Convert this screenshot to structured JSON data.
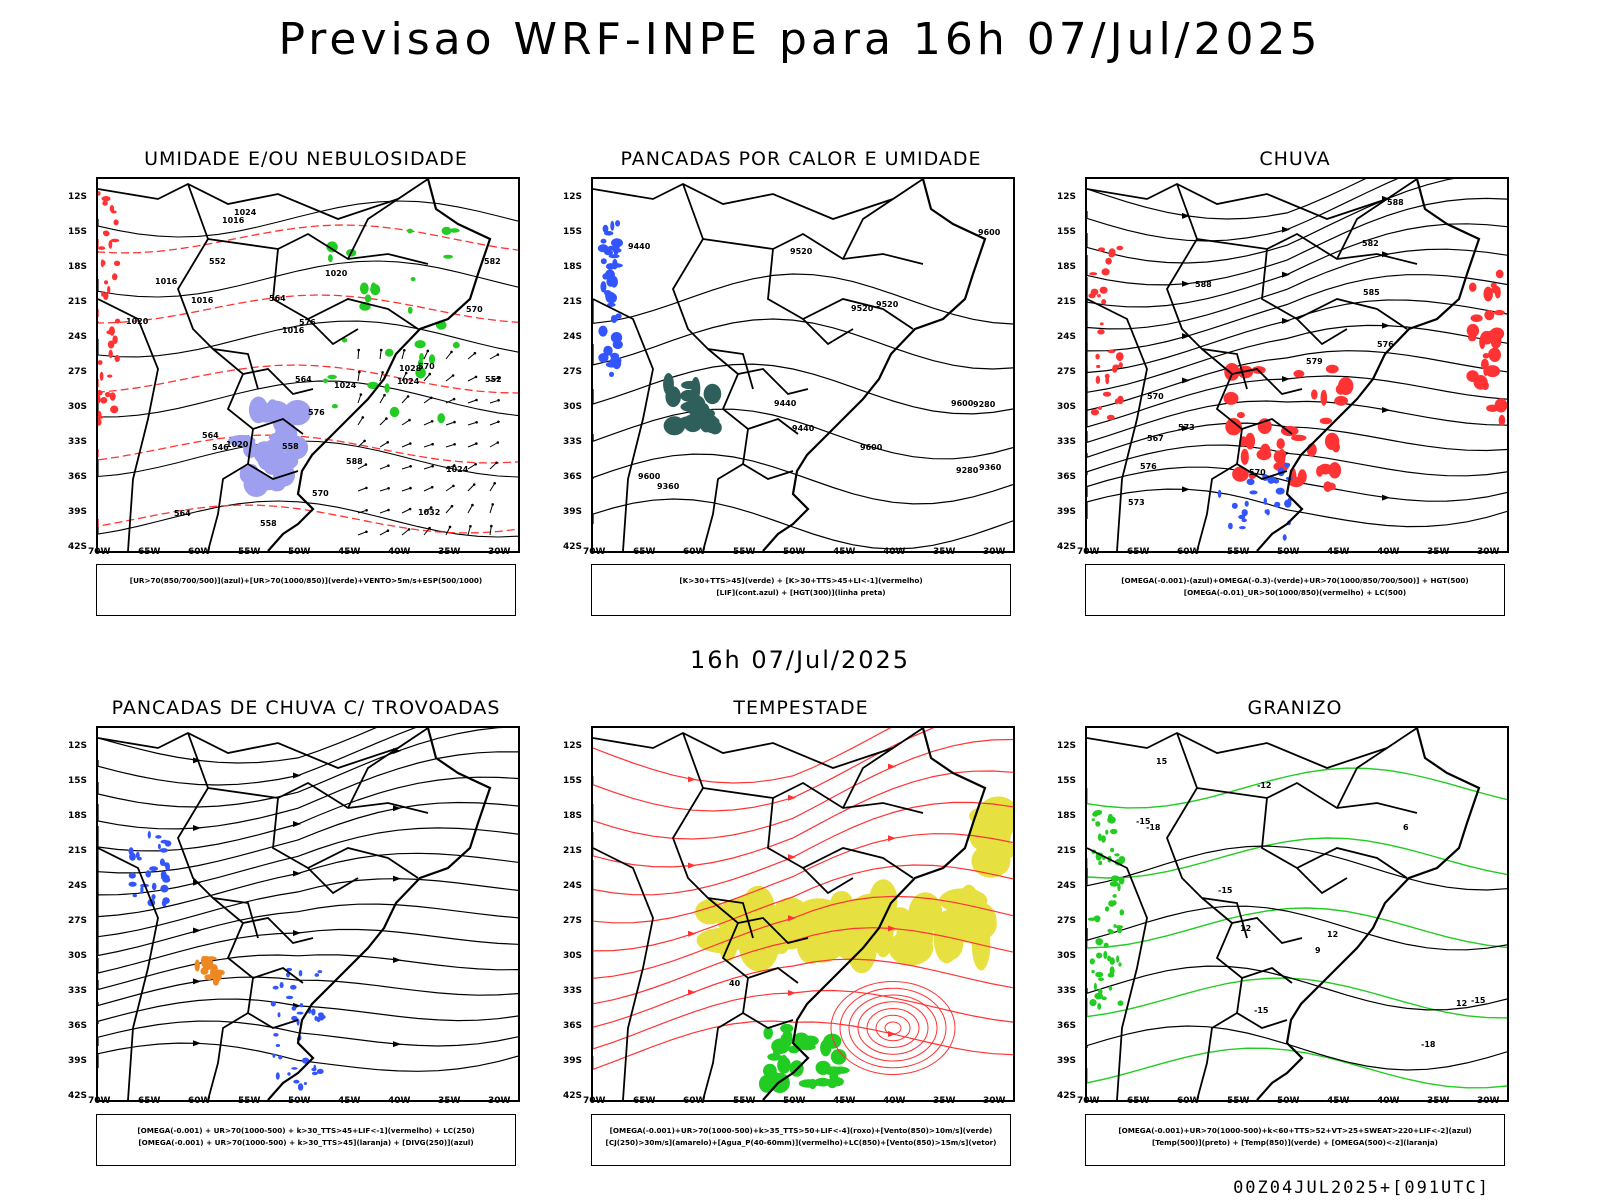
{
  "title": "Previsao WRF-INPE  para 16h 07/Jul/2025",
  "subtitle": "16h 07/Jul/2025",
  "footer": "00Z04JUL2025+[091UTC]",
  "lat_labels": [
    "12S",
    "15S",
    "18S",
    "21S",
    "24S",
    "27S",
    "30S",
    "33S",
    "36S",
    "39S",
    "42S"
  ],
  "lon_labels": [
    "70W",
    "65W",
    "60W",
    "55W",
    "50W",
    "45W",
    "40W",
    "35W",
    "30W"
  ],
  "panels": [
    {
      "title": "UMIDADE E/OU NEBULOSIDADE",
      "legend": [
        "[UR>70(850/700/500)](azul)+[UR>70(1000/850)](verde)+VENTO>5m/s+ESP(500/1000)"
      ],
      "contour_labels": [
        "1016",
        "1016",
        "1016",
        "1016",
        "1020",
        "1020",
        "1020",
        "1024",
        "1024",
        "1024",
        "1024",
        "1028",
        "1032",
        "570",
        "576",
        "570",
        "564",
        "564",
        "564",
        "558",
        "552",
        "546",
        "552",
        "558",
        "570",
        "564",
        "582",
        "588",
        "576"
      ]
    },
    {
      "title": "PANCADAS POR CALOR E UMIDADE",
      "legend": [
        "[K>30+TTS>45](verde) + [K>30+TTS>45+LI<-1](vermelho)",
        "[LIF](cont.azul) + [HGT(300)](linha preta)"
      ],
      "contour_labels": [
        "9520",
        "9600",
        "9600",
        "9600",
        "9600",
        "9520",
        "9440",
        "9440",
        "9360",
        "9280",
        "9520",
        "9440",
        "9360",
        "9280"
      ]
    },
    {
      "title": "CHUVA",
      "legend": [
        "[OMEGA(-0.001)-(azul)+OMEGA(-0.3)-(verde)+UR>70(1000/850/700/500)] + HGT(500)",
        "[OMEGA(-0.01)_UR>50(1000/850)(vermelho) + LC(500)"
      ],
      "contour_labels": [
        "588",
        "588",
        "585",
        "582",
        "579",
        "576",
        "573",
        "570",
        "576",
        "573",
        "570",
        "567"
      ]
    },
    {
      "title": "PANCADAS DE CHUVA C/ TROVOADAS",
      "legend": [
        "[OMEGA(-0.001) + UR>70(1000-500) + k>30_TTS>45+LIF<-1](vermelho) + LC(250)",
        "[OMEGA(-0.001) + UR>70(1000-500) + k>30_TTS>45](laranja) + [DIVG(250)](azul)"
      ],
      "contour_labels": []
    },
    {
      "title": "TEMPESTADE",
      "legend": [
        "[OMEGA(-0.001)+UR>70(1000-500)+k>35_TTS>50+LIF<-4](roxo)+[Vento(850)>10m/s](verde)",
        "[CJ(250)>30m/s](amarelo)+[Agua_P(40-60mm)](vermelho)+LC(850)+[Vento(850)>15m/s](vetor)"
      ],
      "contour_labels": [
        "40"
      ]
    },
    {
      "title": "GRANIZO",
      "legend": [
        "[OMEGA(-0.001)+UR>70(1000-500)+k<60+TTS>52+VT>25+SWEAT>220+LIF<-2](azul)",
        "[Temp(500)](preto) + [Temp(850)](verde) + [OMEGA(500)<-2](laranja)"
      ],
      "contour_labels": [
        "12",
        "12",
        "9",
        "6",
        "-12",
        "-15",
        "-18",
        "-15",
        "-15",
        "-18",
        "-15",
        "15",
        "12"
      ]
    }
  ],
  "colors": {
    "frame": "#000000",
    "humid_blue": "#9f9ff0",
    "green": "#22cc22",
    "red": "#ff3333",
    "blue": "#3355ff",
    "yellow": "#e6e040",
    "teal": "#2f5f5a",
    "orange": "#ee8822"
  }
}
